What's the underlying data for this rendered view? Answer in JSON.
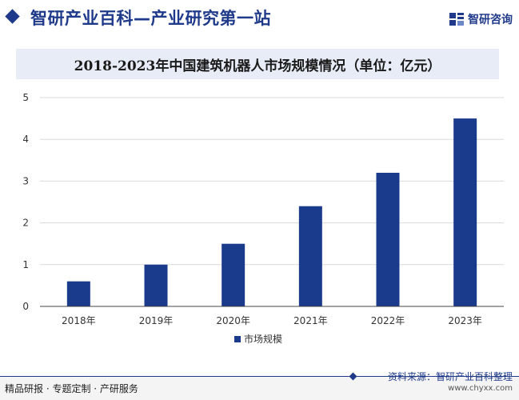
{
  "header": {
    "site_title": "智研产业百科—产业研究第一站",
    "brand_name": "智研咨询"
  },
  "chart_data": {
    "type": "bar",
    "title": "2018-2023年中国建筑机器人市场规模情况（单位：亿元）",
    "xlabel": "",
    "ylabel": "",
    "categories": [
      "2018年",
      "2019年",
      "2020年",
      "2021年",
      "2022年",
      "2023年"
    ],
    "series": [
      {
        "name": "市场规模",
        "values": [
          0.6,
          1.0,
          1.5,
          2.4,
          3.2,
          4.5
        ]
      }
    ],
    "ylim": [
      0,
      5
    ],
    "yticks": [
      "0",
      "1",
      "2",
      "3",
      "4",
      "5"
    ],
    "grid": true,
    "legend": "bottom",
    "colors": {
      "bar": "#1a3b8c",
      "grid": "#d9d9d9",
      "axis": "#444444"
    }
  },
  "footer": {
    "left_text": "精品研报 · 专题定制 · 产研服务",
    "source_text": "资料来源：智研产业百科整理",
    "url_text": "www.chyxx.com"
  }
}
